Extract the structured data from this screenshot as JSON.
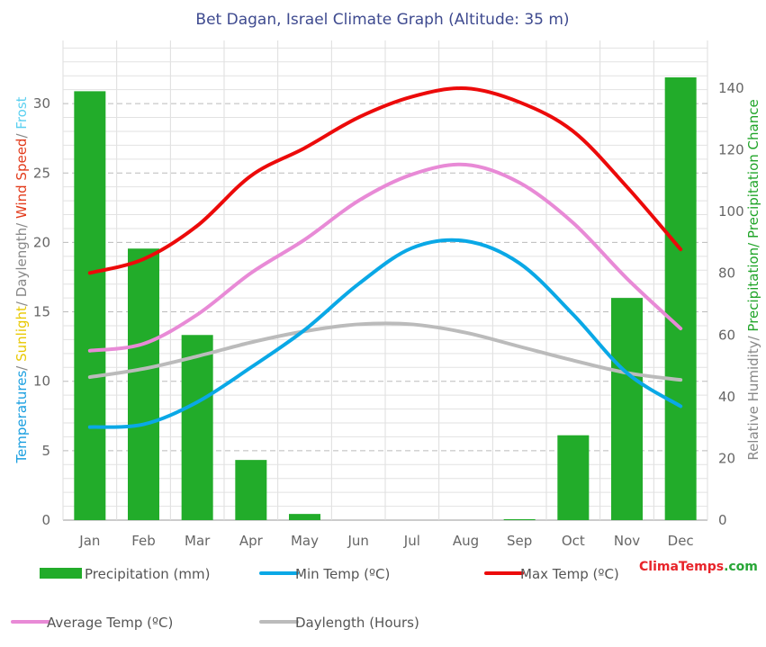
{
  "chart_data": {
    "type": "bar+line",
    "title": "Bet Dagan, Israel Climate Graph (Altitude: 35 m)",
    "categories": [
      "Jan",
      "Feb",
      "Mar",
      "Apr",
      "May",
      "Jun",
      "Jul",
      "Aug",
      "Sep",
      "Oct",
      "Nov",
      "Dec"
    ],
    "left_axis": {
      "ylim": [
        0,
        35
      ],
      "ticks": [
        "0",
        "5",
        "10",
        "15",
        "20",
        "25",
        "30"
      ],
      "label_parts": [
        {
          "text": "Temperatures",
          "color": "#1a9fe0"
        },
        {
          "text": "/ ",
          "color": "#888888"
        },
        {
          "text": "Sunlight",
          "color": "#e8c800"
        },
        {
          "text": "/ Daylength/ ",
          "color": "#888888"
        },
        {
          "text": "Wind Speed",
          "color": "#e23a1a"
        },
        {
          "text": "/ ",
          "color": "#888888"
        },
        {
          "text": "Frost",
          "color": "#5bd0f0"
        }
      ]
    },
    "right_axis": {
      "ylim": [
        0,
        160
      ],
      "ticks": [
        "0",
        "20",
        "40",
        "60",
        "80",
        "100",
        "120",
        "140"
      ],
      "label_parts": [
        {
          "text": "Relative Humidity/ ",
          "color": "#888888"
        },
        {
          "text": "Precipitation/ Precipitation Chance",
          "color": "#22a52a"
        }
      ]
    },
    "series": [
      {
        "name": "Precipitation (mm)",
        "kind": "bar",
        "axis": "right",
        "color": "#22ac2a",
        "values": [
          139,
          88,
          60,
          19.5,
          2,
          0,
          0,
          0,
          0.3,
          27.5,
          72,
          143.5
        ]
      },
      {
        "name": "Min Temp (ºC)",
        "kind": "line",
        "axis": "left",
        "color": "#0aa8e6",
        "values": [
          6.7,
          6.9,
          8.5,
          11.0,
          13.7,
          17.0,
          19.6,
          20.1,
          18.5,
          14.8,
          10.6,
          8.2
        ]
      },
      {
        "name": "Max Temp (ºC)",
        "kind": "line",
        "axis": "left",
        "color": "#ec0a0a",
        "values": [
          17.8,
          18.8,
          21.2,
          24.8,
          26.8,
          29.0,
          30.5,
          31.1,
          30.1,
          28.0,
          24.0,
          19.5
        ]
      },
      {
        "name": "Average Temp (ºC)",
        "kind": "line",
        "axis": "left",
        "color": "#e88ad6",
        "values": [
          12.2,
          12.7,
          14.8,
          17.8,
          20.2,
          23.0,
          24.9,
          25.6,
          24.3,
          21.4,
          17.4,
          13.8
        ]
      },
      {
        "name": "Daylength (Hours)",
        "kind": "line",
        "axis": "left",
        "color": "#bbbbbb",
        "values": [
          10.3,
          10.9,
          11.8,
          12.8,
          13.6,
          14.1,
          14.1,
          13.5,
          12.5,
          11.5,
          10.6,
          10.1
        ]
      }
    ],
    "grid": true,
    "legend_position": "bottom"
  },
  "branding": {
    "part1": "Clima",
    "part2": "Temps",
    "part3": ".com",
    "color_red": "#e8242a",
    "color_green": "#27a636"
  }
}
